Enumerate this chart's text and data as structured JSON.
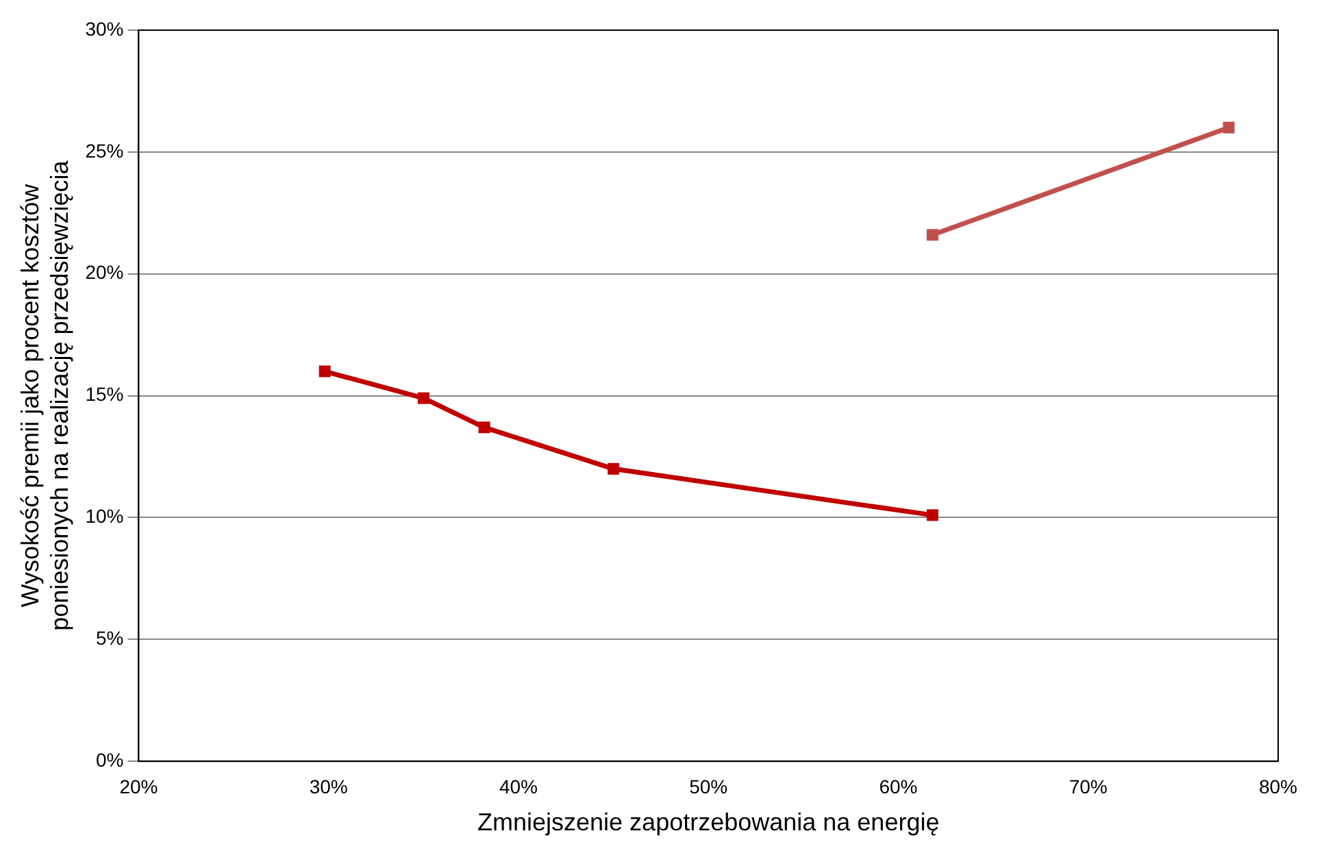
{
  "chart_data": {
    "type": "line",
    "xlabel": "Zmniejszenie zapotrzebowania na energię",
    "ylabel": "Wysokość premii jako procent kosztów\nponiesionych na realizację przedsięwzięcia",
    "series": [
      {
        "color": "#c00000",
        "x": [
          29.8,
          35.0,
          38.2,
          45.0,
          61.8
        ],
        "values": [
          16.0,
          14.9,
          13.7,
          12.0,
          10.1
        ]
      },
      {
        "color": "#c0504d",
        "x": [
          61.8,
          77.4
        ],
        "values": [
          21.6,
          26.0
        ]
      }
    ],
    "xlim": [
      20,
      80
    ],
    "xticks": [
      {
        "value": 20,
        "label": "20%"
      },
      {
        "value": 30,
        "label": "30%"
      },
      {
        "value": 40,
        "label": "40%"
      },
      {
        "value": 50,
        "label": "50%"
      },
      {
        "value": 60,
        "label": "60%"
      },
      {
        "value": 70,
        "label": "70%"
      },
      {
        "value": 80,
        "label": "80%"
      }
    ],
    "ylim": [
      0,
      30
    ],
    "yticks": [
      {
        "value": 0,
        "label": "0%"
      },
      {
        "value": 5,
        "label": "5%"
      },
      {
        "value": 10,
        "label": "10%"
      },
      {
        "value": 15,
        "label": "15%"
      },
      {
        "value": 20,
        "label": "20%"
      },
      {
        "value": 25,
        "label": "25%"
      },
      {
        "value": 30,
        "label": "30%"
      }
    ],
    "grid": "y",
    "legend": false,
    "marker": "square",
    "line_style": "solid"
  }
}
